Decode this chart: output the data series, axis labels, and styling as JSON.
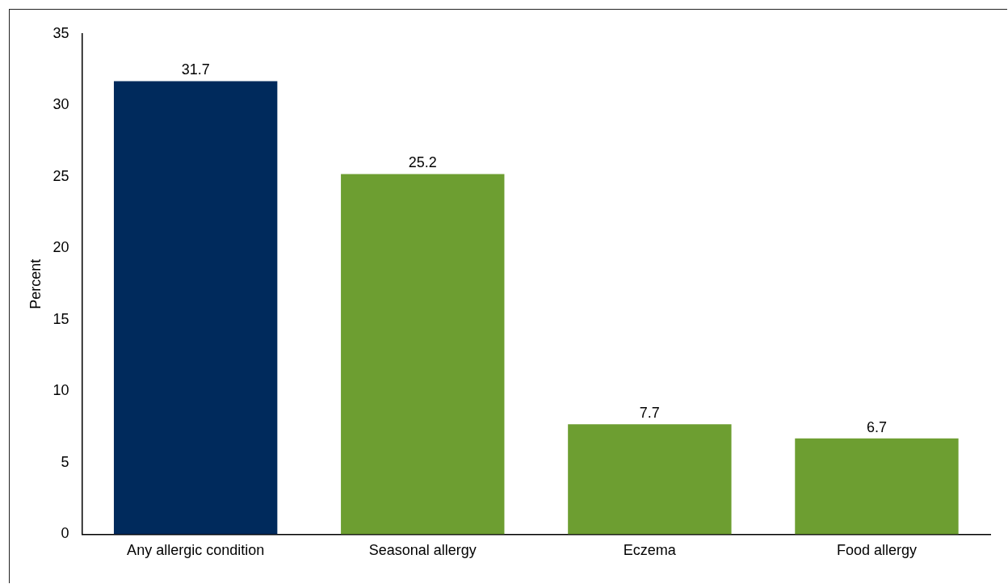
{
  "chart_data": {
    "type": "bar",
    "ylabel": "Percent",
    "categories": [
      "Any allergic condition",
      "Seasonal allergy",
      "Eczema",
      "Food allergy"
    ],
    "values": [
      31.7,
      25.2,
      7.7,
      6.7
    ],
    "colors": [
      "#002a5c",
      "#6d9e31",
      "#6d9e31",
      "#6d9e31"
    ],
    "ylim": [
      0,
      35
    ],
    "yticks": [
      0,
      5,
      10,
      15,
      20,
      25,
      30,
      35
    ],
    "grid": false,
    "legend": false,
    "data_labels": true
  }
}
